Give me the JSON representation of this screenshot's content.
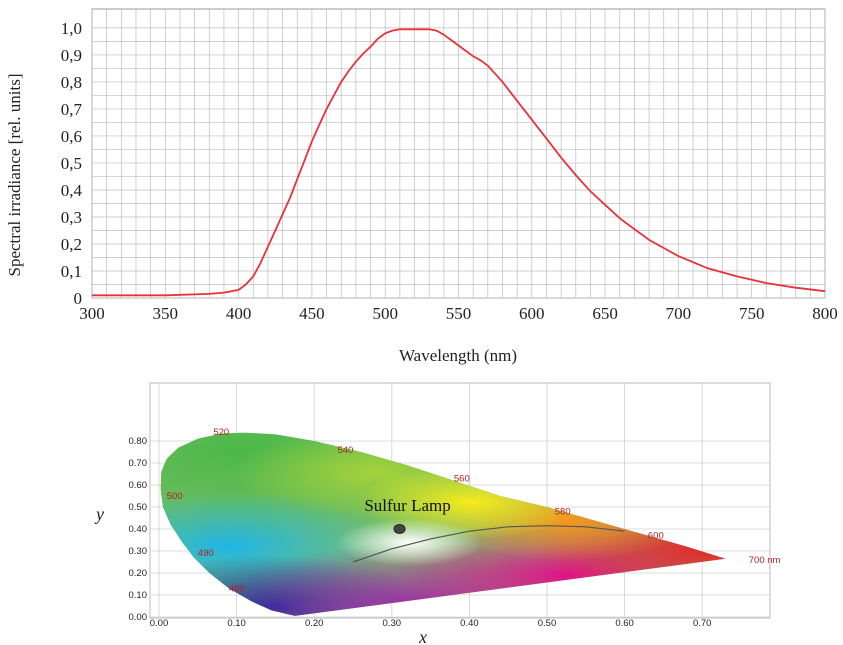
{
  "chart_data": [
    {
      "type": "line",
      "xlabel": "Wavelength (nm)",
      "ylabel": "Spectral irradiance [rel. units]",
      "xlim": [
        300,
        800
      ],
      "ylim": [
        0,
        1.07
      ],
      "xticks": [
        "300",
        "350",
        "400",
        "450",
        "500",
        "550",
        "600",
        "650",
        "700",
        "750",
        "800"
      ],
      "yticks": [
        "0",
        "0,1",
        "0,2",
        "0,3",
        "0,4",
        "0,5",
        "0,6",
        "0,7",
        "0,8",
        "0,9",
        "1,0"
      ],
      "grid": true,
      "line_color": "#e8323c",
      "series": [
        {
          "x": [
            300,
            350,
            380,
            390,
            395,
            400,
            405,
            410,
            415,
            420,
            425,
            430,
            435,
            440,
            445,
            450,
            455,
            460,
            465,
            470,
            475,
            480,
            485,
            490,
            495,
            500,
            505,
            510,
            515,
            520,
            525,
            530,
            535,
            540,
            545,
            550,
            555,
            560,
            565,
            570,
            575,
            580,
            585,
            590,
            595,
            600,
            610,
            620,
            630,
            640,
            650,
            660,
            670,
            680,
            690,
            700,
            720,
            740,
            760,
            780,
            800
          ],
          "y": [
            0.01,
            0.01,
            0.015,
            0.02,
            0.025,
            0.03,
            0.05,
            0.08,
            0.13,
            0.19,
            0.25,
            0.31,
            0.37,
            0.44,
            0.51,
            0.58,
            0.64,
            0.7,
            0.75,
            0.8,
            0.84,
            0.875,
            0.905,
            0.93,
            0.96,
            0.98,
            0.99,
            0.995,
            0.995,
            0.995,
            0.995,
            0.995,
            0.99,
            0.975,
            0.955,
            0.935,
            0.915,
            0.895,
            0.88,
            0.86,
            0.83,
            0.8,
            0.765,
            0.73,
            0.695,
            0.66,
            0.59,
            0.52,
            0.455,
            0.395,
            0.345,
            0.295,
            0.255,
            0.215,
            0.185,
            0.155,
            0.11,
            0.08,
            0.055,
            0.038,
            0.025
          ]
        }
      ]
    },
    {
      "type": "scatter",
      "title": "",
      "xlabel": "x",
      "ylabel": "y",
      "xlim": [
        -0.01,
        0.8
      ],
      "ylim": [
        0,
        0.88
      ],
      "xticks": [
        "0.00",
        "0.10",
        "0.20",
        "0.30",
        "0.40",
        "0.50",
        "0.60",
        "0.70"
      ],
      "yticks": [
        "0.00",
        "0.10",
        "0.20",
        "0.30",
        "0.40",
        "0.50",
        "0.60",
        "0.70",
        "0.80"
      ],
      "grid": true,
      "point_label": "Sulfur Lamp",
      "point": {
        "x": 0.31,
        "y": 0.4
      },
      "wavelength_labels": [
        {
          "text": "520",
          "x": 0.07,
          "y": 0.84
        },
        {
          "text": "540",
          "x": 0.23,
          "y": 0.76
        },
        {
          "text": "560",
          "x": 0.38,
          "y": 0.63
        },
        {
          "text": "580",
          "x": 0.51,
          "y": 0.48
        },
        {
          "text": "600",
          "x": 0.63,
          "y": 0.37
        },
        {
          "text": "700 nm",
          "x": 0.76,
          "y": 0.26
        },
        {
          "text": "500",
          "x": 0.01,
          "y": 0.55
        },
        {
          "text": "490",
          "x": 0.05,
          "y": 0.29
        },
        {
          "text": "480",
          "x": 0.09,
          "y": 0.13
        }
      ],
      "locus": {
        "x": [
          0.175,
          0.145,
          0.12,
          0.09,
          0.065,
          0.045,
          0.03,
          0.015,
          0.005,
          0.002,
          0.003,
          0.01,
          0.025,
          0.05,
          0.08,
          0.11,
          0.15,
          0.2,
          0.26,
          0.32,
          0.38,
          0.44,
          0.5,
          0.56,
          0.62,
          0.68,
          0.73
        ],
        "y": [
          0.005,
          0.03,
          0.07,
          0.13,
          0.2,
          0.27,
          0.34,
          0.42,
          0.5,
          0.58,
          0.66,
          0.72,
          0.77,
          0.81,
          0.834,
          0.838,
          0.83,
          0.8,
          0.75,
          0.69,
          0.62,
          0.55,
          0.5,
          0.44,
          0.38,
          0.32,
          0.265
        ]
      },
      "planckian": {
        "x": [
          0.25,
          0.3,
          0.35,
          0.4,
          0.45,
          0.5,
          0.55,
          0.6
        ],
        "y": [
          0.25,
          0.31,
          0.355,
          0.39,
          0.41,
          0.415,
          0.41,
          0.39
        ]
      }
    }
  ]
}
